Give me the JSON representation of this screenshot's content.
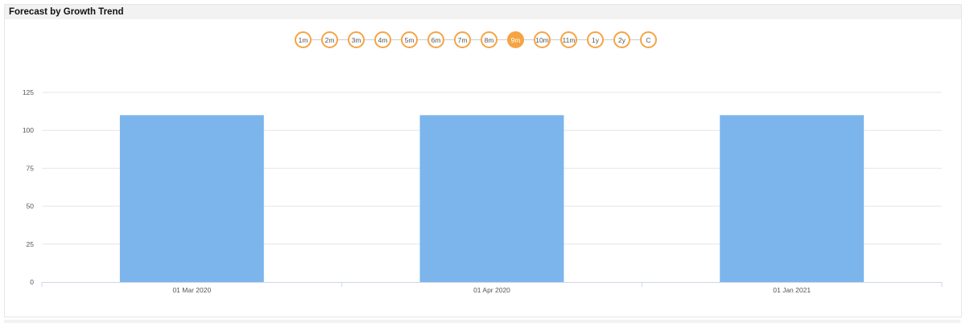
{
  "title": "Forecast by Growth Trend",
  "periods": [
    "1m",
    "2m",
    "3m",
    "4m",
    "5m",
    "6m",
    "7m",
    "8m",
    "9m",
    "10m",
    "11m",
    "1y",
    "2y",
    "C"
  ],
  "active_period": "9m",
  "colors": {
    "bar": "#7cb5ec",
    "accent": "#f5a443"
  },
  "chart_data": {
    "type": "bar",
    "categories": [
      "01 Mar 2020",
      "01 Apr 2020",
      "01 Jan 2021"
    ],
    "values": [
      110,
      110,
      110
    ],
    "title": "",
    "xlabel": "",
    "ylabel": "",
    "ylim": [
      0,
      125
    ],
    "yticks": [
      0,
      25,
      50,
      75,
      100,
      125
    ],
    "grid": true
  }
}
